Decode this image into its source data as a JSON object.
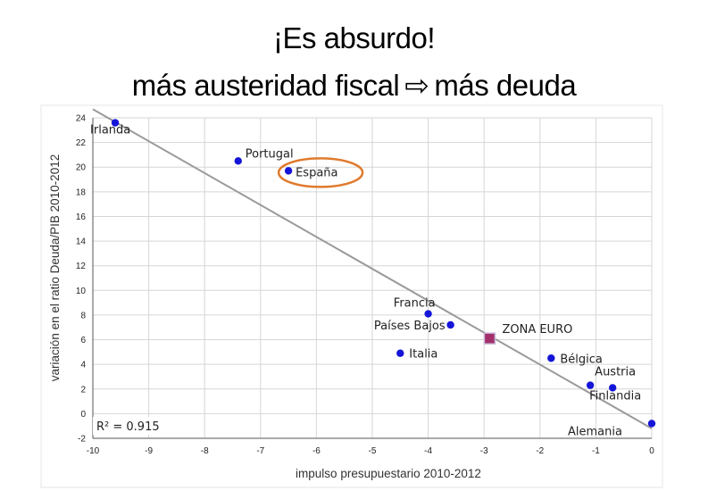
{
  "title_line1": "¡Es absurdo!",
  "title_line2_left": "más austeridad fiscal",
  "title_arrow": "⇨",
  "title_line2_right": "más deuda",
  "chart_data": {
    "type": "scatter",
    "xlabel": "impulso presupuestario 2010-2012",
    "ylabel": "variación en el ratio Deuda/PIB 2010-2012",
    "xlim": [
      -10,
      0
    ],
    "ylim": [
      -2,
      24
    ],
    "x_ticks": [
      -10,
      -9,
      -8,
      -7,
      -6,
      -5,
      -4,
      -3,
      -2,
      -1,
      0
    ],
    "y_ticks": [
      -2,
      0,
      2,
      4,
      6,
      8,
      10,
      12,
      14,
      16,
      18,
      20,
      22,
      24
    ],
    "grid": true,
    "points": [
      {
        "name": "Irlanda",
        "x": -9.6,
        "y": 23.6
      },
      {
        "name": "Portugal",
        "x": -7.4,
        "y": 20.5
      },
      {
        "name": "España",
        "x": -6.5,
        "y": 19.7,
        "highlight": true
      },
      {
        "name": "Francia",
        "x": -4.0,
        "y": 8.1
      },
      {
        "name": "Países Bajos",
        "x": -3.6,
        "y": 7.2
      },
      {
        "name": "Italia",
        "x": -4.5,
        "y": 4.9
      },
      {
        "name": "ZONA EURO",
        "x": -2.9,
        "y": 6.1,
        "aggregate": true
      },
      {
        "name": "Bélgica",
        "x": -1.8,
        "y": 4.5
      },
      {
        "name": "Austria",
        "x": -0.7,
        "y": 2.1
      },
      {
        "name": "Finlandia",
        "x": -1.1,
        "y": 2.3
      },
      {
        "name": "Alemania",
        "x": 0.0,
        "y": -0.8
      }
    ],
    "trendline": {
      "x": [
        -10,
        0
      ],
      "y": [
        24.7,
        -1.2
      ]
    },
    "annotation": "R² = 0.915",
    "colors": {
      "point": "#1515d8",
      "aggregate": "#a3306a",
      "trend": "#9a9a9a",
      "highlight_ring": "#e07a2c",
      "grid": "#d6d6d6"
    }
  }
}
